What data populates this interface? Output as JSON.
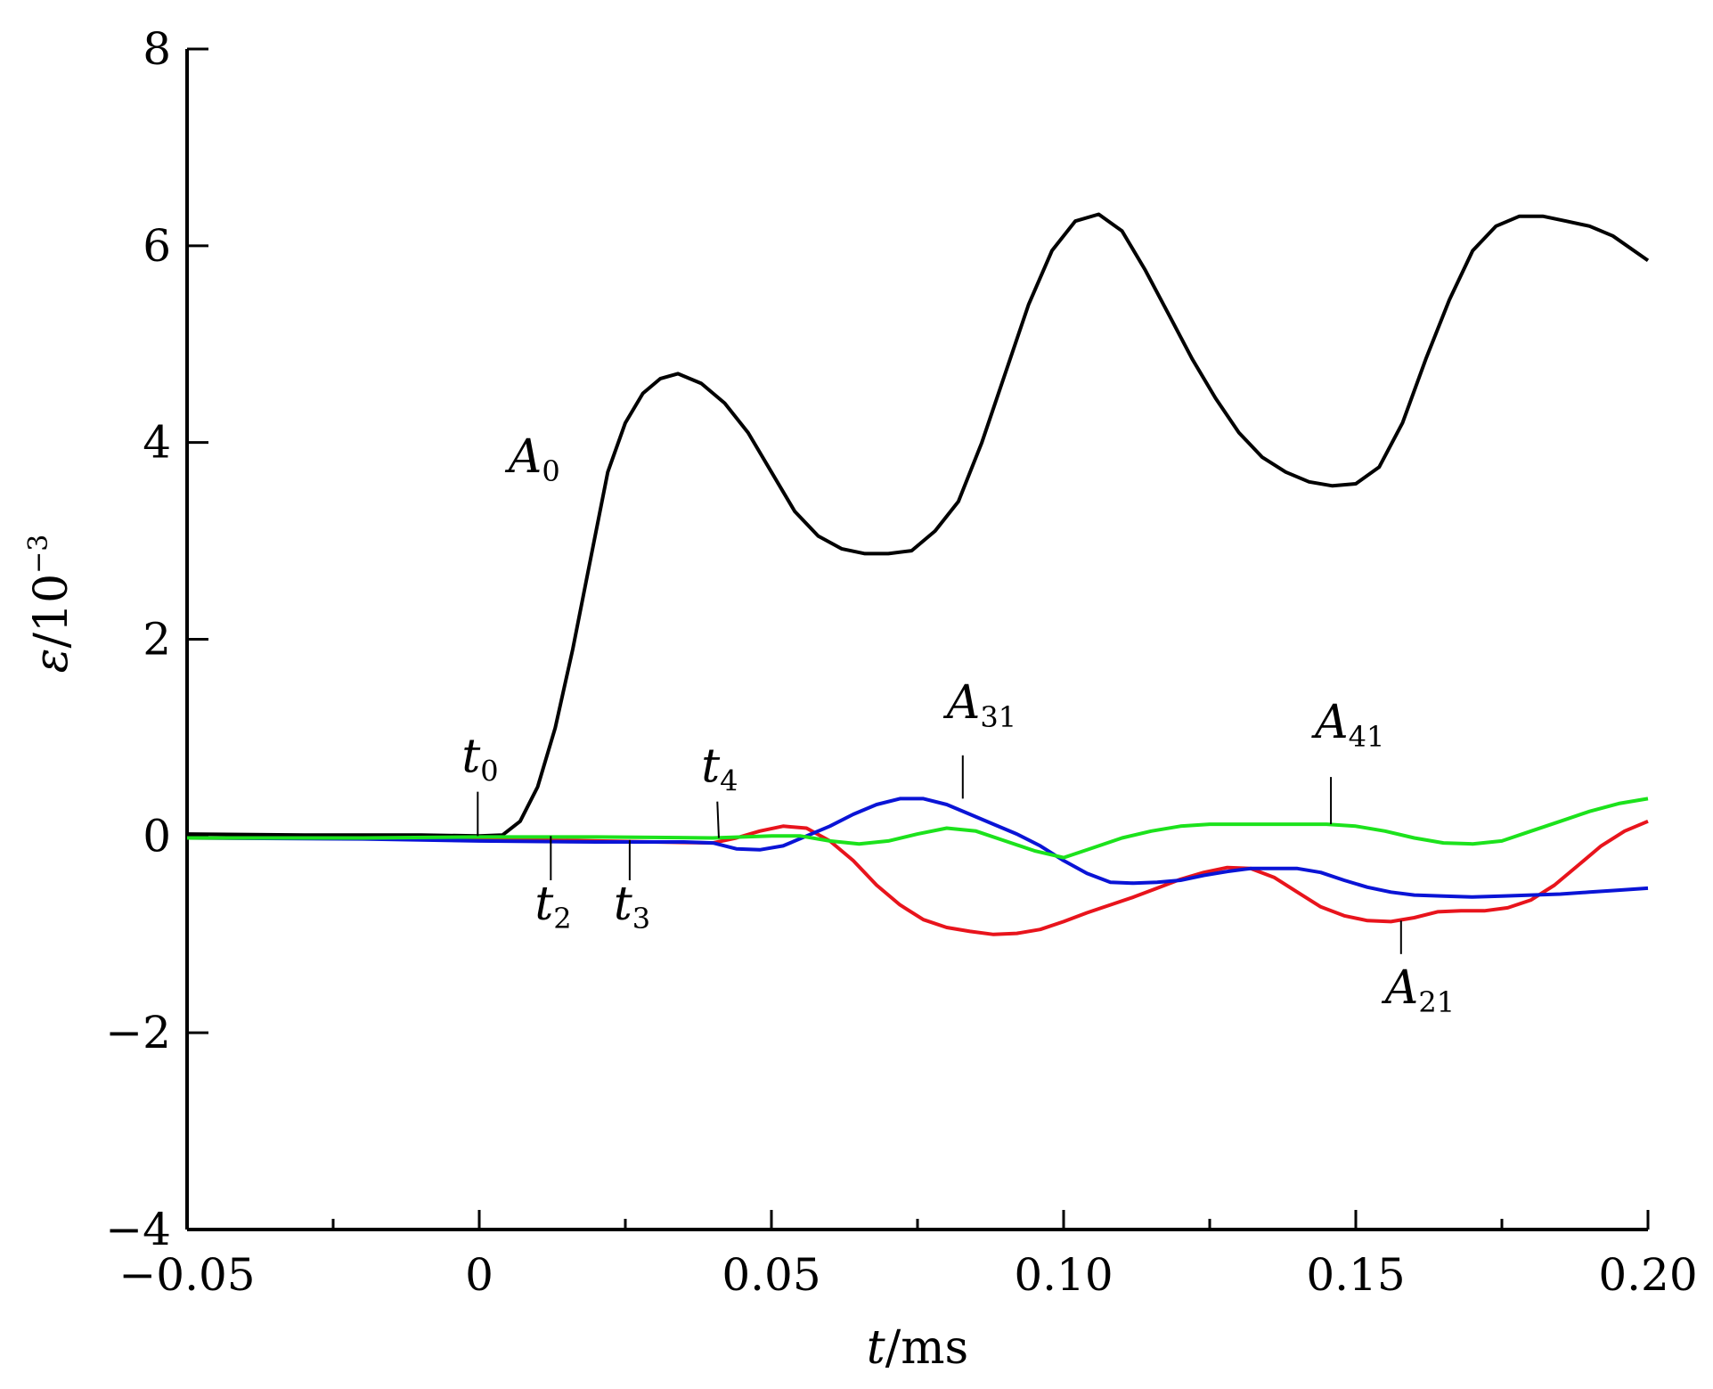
{
  "chart_data": {
    "type": "line",
    "xlabel": {
      "var": "t",
      "unit": "/ms"
    },
    "ylabel": {
      "var": "ε",
      "unit": "/10",
      "sup": "−3"
    },
    "xlim": [
      -0.05,
      0.2
    ],
    "ylim": [
      -4,
      8
    ],
    "grid": false,
    "legend": "none",
    "x_ticks": [
      {
        "value": -0.05,
        "label": "−0.05"
      },
      {
        "value": 0,
        "label": "0"
      },
      {
        "value": 0.05,
        "label": "0.05"
      },
      {
        "value": 0.1,
        "label": "0.10"
      },
      {
        "value": 0.15,
        "label": "0.15"
      },
      {
        "value": 0.2,
        "label": "0.20"
      }
    ],
    "y_ticks": [
      {
        "value": -4,
        "label": "−4"
      },
      {
        "value": -2,
        "label": "−2"
      },
      {
        "value": 0,
        "label": "0"
      },
      {
        "value": 2,
        "label": "2"
      },
      {
        "value": 4,
        "label": "4"
      },
      {
        "value": 6,
        "label": "6"
      },
      {
        "value": 8,
        "label": "8"
      }
    ],
    "series": [
      {
        "name": "A0",
        "color": "#000000",
        "x": [
          -0.05,
          -0.03,
          -0.01,
          0.0,
          0.004,
          0.007,
          0.01,
          0.013,
          0.016,
          0.019,
          0.022,
          0.025,
          0.028,
          0.031,
          0.034,
          0.038,
          0.042,
          0.046,
          0.05,
          0.054,
          0.058,
          0.062,
          0.066,
          0.07,
          0.074,
          0.078,
          0.082,
          0.086,
          0.09,
          0.094,
          0.098,
          0.102,
          0.106,
          0.11,
          0.114,
          0.118,
          0.122,
          0.126,
          0.13,
          0.134,
          0.138,
          0.142,
          0.146,
          0.15,
          0.154,
          0.158,
          0.162,
          0.166,
          0.17,
          0.174,
          0.178,
          0.182,
          0.186,
          0.19,
          0.194,
          0.2
        ],
        "values": [
          0.02,
          0.01,
          0.01,
          0.0,
          0.01,
          0.15,
          0.5,
          1.1,
          1.9,
          2.8,
          3.7,
          4.2,
          4.5,
          4.65,
          4.7,
          4.6,
          4.4,
          4.1,
          3.7,
          3.3,
          3.05,
          2.92,
          2.87,
          2.87,
          2.9,
          3.1,
          3.4,
          4.0,
          4.7,
          5.4,
          5.95,
          6.25,
          6.32,
          6.15,
          5.75,
          5.3,
          4.85,
          4.45,
          4.1,
          3.85,
          3.7,
          3.6,
          3.56,
          3.58,
          3.75,
          4.2,
          4.85,
          5.45,
          5.95,
          6.2,
          6.3,
          6.3,
          6.25,
          6.2,
          6.1,
          5.85
        ]
      },
      {
        "name": "A21",
        "color": "#e8141c",
        "x": [
          -0.05,
          0.0,
          0.02,
          0.04,
          0.044,
          0.048,
          0.052,
          0.056,
          0.06,
          0.064,
          0.068,
          0.072,
          0.076,
          0.08,
          0.084,
          0.088,
          0.092,
          0.096,
          0.1,
          0.104,
          0.108,
          0.112,
          0.116,
          0.12,
          0.124,
          0.128,
          0.132,
          0.136,
          0.14,
          0.144,
          0.148,
          0.152,
          0.156,
          0.16,
          0.164,
          0.168,
          0.172,
          0.176,
          0.18,
          0.184,
          0.188,
          0.192,
          0.196,
          0.2
        ],
        "values": [
          -0.02,
          -0.03,
          -0.05,
          -0.07,
          -0.02,
          0.05,
          0.1,
          0.08,
          -0.05,
          -0.25,
          -0.5,
          -0.7,
          -0.85,
          -0.93,
          -0.97,
          -1.0,
          -0.99,
          -0.95,
          -0.87,
          -0.78,
          -0.7,
          -0.62,
          -0.53,
          -0.44,
          -0.37,
          -0.32,
          -0.33,
          -0.42,
          -0.57,
          -0.72,
          -0.81,
          -0.86,
          -0.87,
          -0.83,
          -0.77,
          -0.76,
          -0.76,
          -0.73,
          -0.65,
          -0.5,
          -0.3,
          -0.1,
          0.05,
          0.15
        ]
      },
      {
        "name": "A31",
        "color": "#0a14d6",
        "x": [
          -0.05,
          -0.02,
          0.0,
          0.02,
          0.035,
          0.04,
          0.044,
          0.048,
          0.052,
          0.056,
          0.06,
          0.064,
          0.068,
          0.072,
          0.076,
          0.08,
          0.084,
          0.088,
          0.092,
          0.096,
          0.1,
          0.104,
          0.108,
          0.112,
          0.116,
          0.12,
          0.124,
          0.128,
          0.132,
          0.136,
          0.14,
          0.144,
          0.148,
          0.152,
          0.156,
          0.16,
          0.165,
          0.17,
          0.175,
          0.18,
          0.185,
          0.19,
          0.195,
          0.2
        ],
        "values": [
          -0.02,
          -0.03,
          -0.05,
          -0.06,
          -0.06,
          -0.07,
          -0.13,
          -0.14,
          -0.1,
          0.0,
          0.1,
          0.22,
          0.32,
          0.38,
          0.38,
          0.32,
          0.22,
          0.12,
          0.02,
          -0.1,
          -0.25,
          -0.38,
          -0.47,
          -0.48,
          -0.47,
          -0.45,
          -0.4,
          -0.36,
          -0.33,
          -0.33,
          -0.33,
          -0.37,
          -0.45,
          -0.52,
          -0.57,
          -0.6,
          -0.61,
          -0.62,
          -0.61,
          -0.6,
          -0.59,
          -0.57,
          -0.55,
          -0.53
        ]
      },
      {
        "name": "A41",
        "color": "#1ce21c",
        "x": [
          -0.05,
          -0.02,
          0.0,
          0.02,
          0.04,
          0.05,
          0.055,
          0.06,
          0.065,
          0.07,
          0.075,
          0.08,
          0.085,
          0.09,
          0.095,
          0.1,
          0.105,
          0.11,
          0.115,
          0.12,
          0.125,
          0.13,
          0.135,
          0.14,
          0.145,
          0.15,
          0.155,
          0.16,
          0.165,
          0.17,
          0.175,
          0.18,
          0.185,
          0.19,
          0.195,
          0.2
        ],
        "values": [
          -0.02,
          -0.02,
          -0.01,
          -0.01,
          -0.02,
          0.0,
          0.0,
          -0.05,
          -0.08,
          -0.05,
          0.02,
          0.08,
          0.05,
          -0.05,
          -0.15,
          -0.22,
          -0.12,
          -0.02,
          0.05,
          0.1,
          0.12,
          0.12,
          0.12,
          0.12,
          0.12,
          0.1,
          0.05,
          -0.02,
          -0.07,
          -0.08,
          -0.05,
          0.05,
          0.15,
          0.25,
          0.33,
          0.38
        ]
      }
    ],
    "annotations": [
      {
        "id": "a0",
        "main": "A",
        "sub": "0",
        "x": 0.005,
        "y": 3.7,
        "has_leader": false
      },
      {
        "id": "a31",
        "main": "A",
        "sub": "31",
        "x": 0.08,
        "y": 1.2,
        "leader_from": 0.82,
        "leader_to": 0.38
      },
      {
        "id": "a41",
        "main": "A",
        "sub": "41",
        "x": 0.143,
        "y": 1.0,
        "leader_from": 0.6,
        "leader_to": 0.12
      },
      {
        "id": "a21",
        "main": "A",
        "sub": "21",
        "x": 0.155,
        "y": -1.7,
        "leader_from": -1.2,
        "leader_to": -0.86
      },
      {
        "id": "t0",
        "main": "t",
        "sub": "0",
        "x": -0.003,
        "y": 0.65,
        "leader_from": 0.45,
        "leader_to": 0.0
      },
      {
        "id": "t4",
        "main": "t",
        "sub": "4",
        "x": 0.038,
        "y": 0.55,
        "leader_from": 0.35,
        "leader_to": -0.02,
        "leader_x_to": 0.041
      },
      {
        "id": "t2",
        "main": "t",
        "sub": "2",
        "x": 0.0095,
        "y": -0.85,
        "leader_from": -0.45,
        "leader_to": 0.0
      },
      {
        "id": "t3",
        "main": "t",
        "sub": "3",
        "x": 0.023,
        "y": -0.85,
        "leader_from": -0.45,
        "leader_to": -0.04
      }
    ]
  }
}
